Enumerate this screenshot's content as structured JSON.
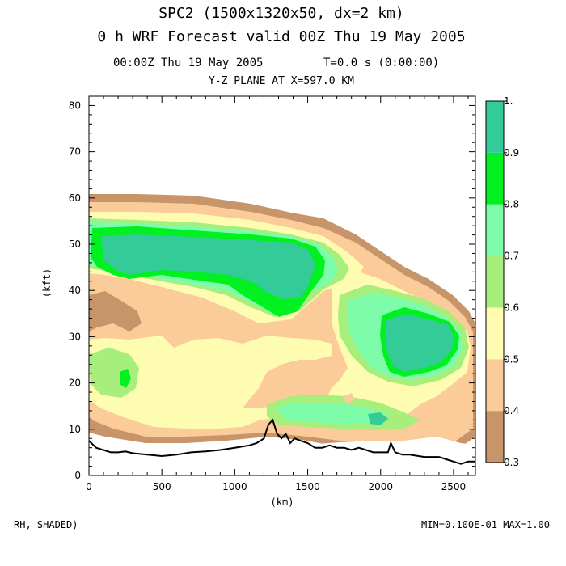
{
  "header": {
    "title_line1": "SPC2 (1500x1320x50, dx=2 km)",
    "title_line2": "0 h WRF Forecast valid 00Z Thu 19 May 2005",
    "valid_time": "00:00Z Thu 19 May 2005",
    "model_time": "T=0.0 s (0:00:00)",
    "plane": "Y-Z PLANE AT X=597.0 KM"
  },
  "footer": {
    "field": "RH, SHADED)",
    "range": "MIN=0.100E-01 MAX=1.00"
  },
  "chart_data": {
    "type": "heatmap",
    "field": "RH",
    "xlabel": "(km)",
    "ylabel": "(kft)",
    "xlim": [
      0,
      2650
    ],
    "ylim": [
      0,
      82
    ],
    "x_ticks": [
      0,
      500,
      1000,
      1500,
      2000,
      2500
    ],
    "y_ticks": [
      0,
      10,
      20,
      30,
      40,
      50,
      60,
      70,
      80
    ],
    "colorbar": {
      "levels": [
        0.3,
        0.4,
        0.5,
        0.6,
        0.7,
        0.8,
        0.9,
        1.0
      ],
      "labels": [
        "0.3",
        "0.4",
        "0.5",
        "0.6",
        "0.7",
        "0.8",
        "0.9",
        "1."
      ],
      "colors": [
        "#c8956a",
        "#fccb9a",
        "#fdfcb0",
        "#a6ef7c",
        "#7dfcaa",
        "#00f020",
        "#33cc99"
      ]
    },
    "terrain": [
      [
        0,
        7.5
      ],
      [
        50,
        6
      ],
      [
        100,
        5.5
      ],
      [
        150,
        5
      ],
      [
        200,
        5
      ],
      [
        250,
        5.2
      ],
      [
        300,
        4.8
      ],
      [
        400,
        4.5
      ],
      [
        500,
        4.2
      ],
      [
        600,
        4.5
      ],
      [
        700,
        5
      ],
      [
        800,
        5.2
      ],
      [
        900,
        5.5
      ],
      [
        1000,
        6
      ],
      [
        1100,
        6.5
      ],
      [
        1150,
        7
      ],
      [
        1200,
        8
      ],
      [
        1230,
        11
      ],
      [
        1260,
        12
      ],
      [
        1290,
        9
      ],
      [
        1320,
        8
      ],
      [
        1350,
        9
      ],
      [
        1380,
        7
      ],
      [
        1410,
        8
      ],
      [
        1450,
        7.5
      ],
      [
        1500,
        7
      ],
      [
        1550,
        6
      ],
      [
        1600,
        6
      ],
      [
        1650,
        6.5
      ],
      [
        1700,
        6
      ],
      [
        1750,
        6
      ],
      [
        1800,
        5.5
      ],
      [
        1850,
        6
      ],
      [
        1900,
        5.5
      ],
      [
        1950,
        5
      ],
      [
        2000,
        5
      ],
      [
        2050,
        5
      ],
      [
        2070,
        7
      ],
      [
        2100,
        5
      ],
      [
        2150,
        4.5
      ],
      [
        2200,
        4.5
      ],
      [
        2300,
        4
      ],
      [
        2400,
        4
      ],
      [
        2450,
        3.5
      ],
      [
        2500,
        3
      ],
      [
        2550,
        2.5
      ],
      [
        2600,
        3
      ],
      [
        2650,
        3
      ]
    ]
  }
}
